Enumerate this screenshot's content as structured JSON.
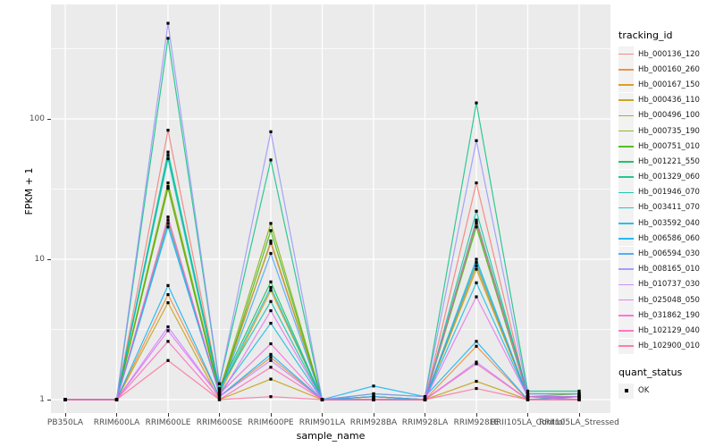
{
  "chart_data": {
    "type": "line",
    "title": "",
    "xlabel": "sample_name",
    "ylabel": "FPKM + 1",
    "yscale": "log10",
    "yticks": [
      1,
      10,
      100
    ],
    "ylim": [
      0.93,
      620
    ],
    "grid": true,
    "legend_position": "right",
    "legend_title": "tracking_id",
    "point_legend": {
      "title": "quant_status",
      "items": [
        "OK"
      ],
      "marker": "filled-black-square"
    },
    "x_categories": [
      "PB350LA",
      "RRIM600LA",
      "RRIM600LE",
      "RRIM600SE",
      "RRIM600PE",
      "RRIM901LA",
      "RRIM928BA",
      "RRIM928LA",
      "RRIM928LE",
      "RRII105LA_Control",
      "RRII105LA_Stressed"
    ],
    "series": [
      {
        "name": "Hb_000136_120",
        "color": "#F8766D",
        "values": [
          1,
          1,
          83,
          1.2,
          13,
          1,
          1,
          1,
          35,
          1.05,
          1.05
        ]
      },
      {
        "name": "Hb_000160_260",
        "color": "#EA8331",
        "values": [
          1,
          1,
          5.6,
          1.05,
          2.0,
          1,
          1,
          1,
          2.4,
          1,
          1.05
        ]
      },
      {
        "name": "Hb_000167_150",
        "color": "#D89000",
        "values": [
          1,
          1,
          33,
          1.1,
          6.0,
          1,
          1.05,
          1,
          8.5,
          1.05,
          1
        ]
      },
      {
        "name": "Hb_000436_110",
        "color": "#C09B00",
        "values": [
          1,
          1,
          4.9,
          1,
          1.4,
          1,
          1,
          1,
          1.35,
          1,
          1
        ]
      },
      {
        "name": "Hb_000496_100",
        "color": "#A3A500",
        "values": [
          1,
          1,
          19,
          1.1,
          13.5,
          1,
          1.05,
          1,
          9.0,
          1.05,
          1.05
        ]
      },
      {
        "name": "Hb_000735_190",
        "color": "#7CAE00",
        "values": [
          1,
          1,
          35,
          1.15,
          18,
          1,
          1,
          1,
          18,
          1.05,
          1.1
        ]
      },
      {
        "name": "Hb_000751_010",
        "color": "#39B600",
        "values": [
          1,
          1,
          32,
          1.1,
          16,
          1,
          1,
          1,
          17,
          1.05,
          1.05
        ]
      },
      {
        "name": "Hb_001221_550",
        "color": "#00BB4E",
        "values": [
          1,
          1,
          55,
          1.2,
          6.9,
          1,
          1.05,
          1,
          19,
          1.1,
          1.1
        ]
      },
      {
        "name": "Hb_001329_060",
        "color": "#00BF7D",
        "values": [
          1,
          1,
          375,
          1.3,
          51,
          1,
          1.1,
          1.05,
          130,
          1.15,
          1.15
        ]
      },
      {
        "name": "Hb_001946_070",
        "color": "#00C1A3",
        "values": [
          1,
          1,
          58,
          1.2,
          5.0,
          1,
          1,
          1,
          22,
          1.1,
          1.1
        ]
      },
      {
        "name": "Hb_003411_070",
        "color": "#00BFC4",
        "values": [
          1,
          1,
          52,
          1.15,
          6.3,
          1,
          1.05,
          1,
          10,
          1.05,
          1.05
        ]
      },
      {
        "name": "Hb_003592_040",
        "color": "#00BAE0",
        "values": [
          1,
          1,
          17,
          1.1,
          3.5,
          1,
          1,
          1,
          6.8,
          1.05,
          1
        ]
      },
      {
        "name": "Hb_006586_060",
        "color": "#00B0F6",
        "values": [
          1,
          1,
          6.5,
          1.05,
          2.1,
          1,
          1.25,
          1.05,
          2.6,
          1,
          1.05
        ]
      },
      {
        "name": "Hb_006594_030",
        "color": "#35A2FF",
        "values": [
          1,
          1,
          18,
          1.1,
          11,
          1,
          1.05,
          1,
          9.5,
          1.05,
          1.05
        ]
      },
      {
        "name": "Hb_008165_010",
        "color": "#9590FF",
        "values": [
          1,
          1,
          480,
          1.3,
          81,
          1,
          1.1,
          1.05,
          70,
          1.1,
          1.1
        ]
      },
      {
        "name": "Hb_010737_030",
        "color": "#C77CFF",
        "values": [
          1,
          1,
          3.3,
          1.05,
          1.9,
          1,
          1,
          1,
          1.85,
          1,
          1
        ]
      },
      {
        "name": "Hb_025048_050",
        "color": "#E76BF3",
        "values": [
          1,
          1,
          3.1,
          1.05,
          4.3,
          1,
          1,
          1,
          5.4,
          1.05,
          1
        ]
      },
      {
        "name": "Hb_031862_190",
        "color": "#FA62DB",
        "values": [
          1,
          1,
          20,
          1.1,
          2.5,
          1,
          1,
          1,
          18.5,
          1.05,
          1.05
        ]
      },
      {
        "name": "Hb_102129_040",
        "color": "#FF62BC",
        "values": [
          1,
          1,
          2.6,
          1,
          1.7,
          1,
          1,
          1,
          1.8,
          1,
          1
        ]
      },
      {
        "name": "Hb_102900_010",
        "color": "#FF6A98",
        "values": [
          1,
          1,
          1.9,
          1,
          1.05,
          1,
          1,
          1,
          1.2,
          1,
          1
        ]
      }
    ]
  },
  "style_colors": {
    "panel_background": "#EBEBEB",
    "gridline": "#FFFFFF",
    "tick_text": "#4D4D4D",
    "point": "#000000",
    "legend_key_fill": "#F2F2F2"
  }
}
